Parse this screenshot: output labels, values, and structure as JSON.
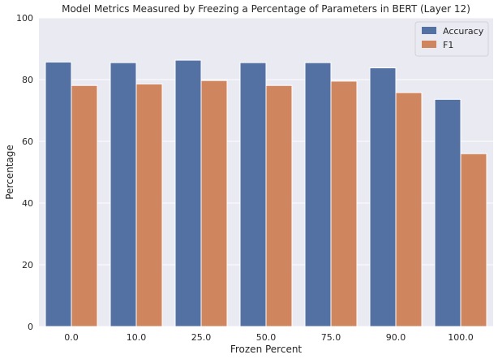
{
  "chart_data": {
    "type": "bar",
    "title": "Model Metrics Measured by Freezing a Percentage of Parameters in BERT (Layer 12)",
    "xlabel": "Frozen Percent",
    "ylabel": "Percentage",
    "categories": [
      "0.0",
      "10.0",
      "25.0",
      "50.0",
      "75.0",
      "90.0",
      "100.0"
    ],
    "series": [
      {
        "name": "Accuracy",
        "color": "#5471a4",
        "values": [
          85.7,
          85.5,
          86.3,
          85.5,
          85.5,
          83.8,
          73.6
        ]
      },
      {
        "name": "F1",
        "color": "#cf855d",
        "values": [
          78.1,
          78.6,
          79.7,
          78.1,
          79.5,
          75.8,
          56.0
        ]
      }
    ],
    "ylim": [
      0,
      100
    ],
    "yticks": [
      "0",
      "20",
      "40",
      "60",
      "80",
      "100"
    ],
    "grid": true,
    "legend_position": "top-right",
    "background": "#eaeaf2"
  }
}
